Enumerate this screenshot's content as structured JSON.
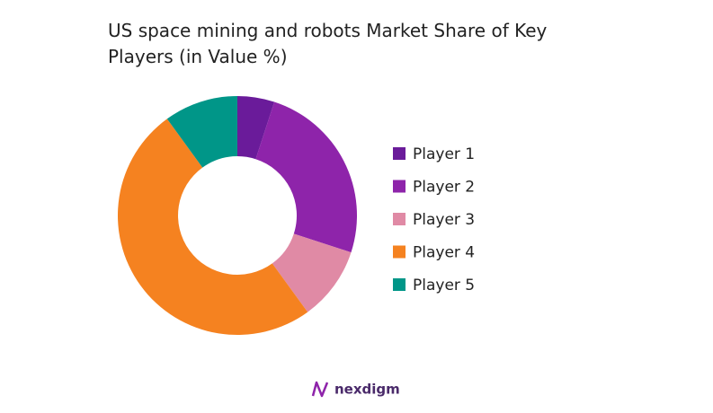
{
  "chart_data": {
    "type": "donut",
    "title": "US space mining and robots Market Share of Key Players (in Value %)",
    "categories": [
      "Player 1",
      "Player 2",
      "Player 3",
      "Player 4",
      "Player 5"
    ],
    "values": [
      5,
      25,
      10,
      50,
      10
    ],
    "colors": [
      "#6a1b9a",
      "#8e24aa",
      "#e08aa5",
      "#f58220",
      "#009688"
    ],
    "legend": "right"
  },
  "brand": "nexdigm"
}
